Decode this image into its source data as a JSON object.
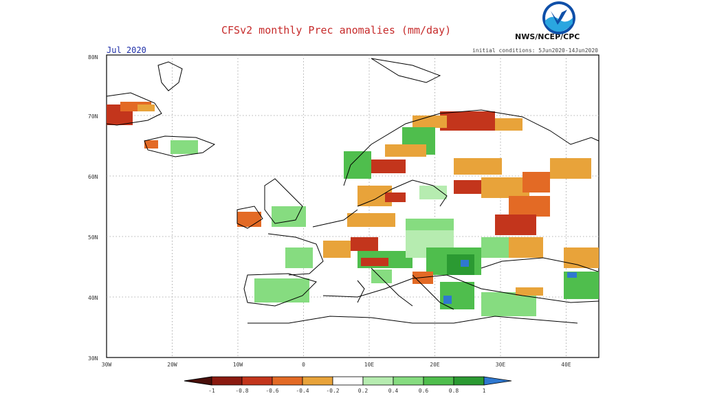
{
  "header": {
    "title": "CFSv2 monthly Prec anomalies (mm/day)",
    "agency": "NWS/NCEP/CPC",
    "period": "Jul 2020",
    "initial_conditions": "initial conditions: 5Jun2020-14Jun2020",
    "logo_icon": "noaa-logo-icon"
  },
  "map": {
    "lat_labels": [
      "80N",
      "70N",
      "60N",
      "50N",
      "40N",
      "30N"
    ],
    "lon_labels": [
      "30W",
      "20W",
      "10W",
      "0",
      "10E",
      "20E",
      "30E",
      "40E"
    ],
    "lat_range": [
      30,
      80
    ],
    "lon_range": [
      -30,
      45
    ],
    "grid": "dotted"
  },
  "legend": {
    "labels": [
      "-1",
      "-0.8",
      "-0.6",
      "-0.4",
      "-0.2",
      "0.2",
      "0.4",
      "0.6",
      "0.8",
      "1"
    ],
    "colors": [
      "#8b1a10",
      "#c3351c",
      "#e36a25",
      "#e8a33a",
      "#ffffff",
      "#b6ecb0",
      "#86dc80",
      "#4fbe4d",
      "#2b9a32",
      "#2f78d0"
    ]
  }
}
